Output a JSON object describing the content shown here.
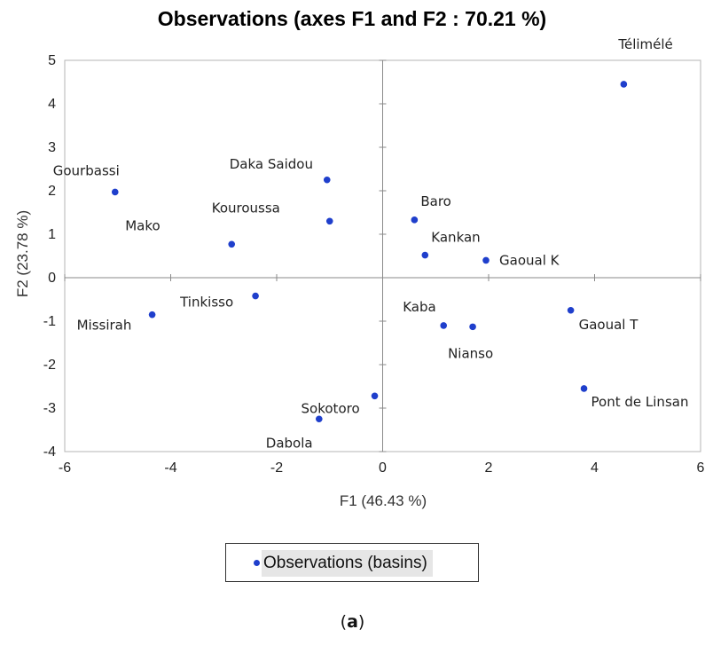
{
  "chart_data": {
    "type": "scatter",
    "title": "Observations (axes F1 and F2 : 70.21 %)",
    "xlabel": "F1 (46.43 %)",
    "ylabel": "F2 (23.78 %)",
    "xlim": [
      -6,
      6
    ],
    "ylim": [
      -4,
      5
    ],
    "x_ticks": [
      -6,
      -4,
      -2,
      0,
      2,
      4,
      6
    ],
    "y_ticks": [
      -4,
      -3,
      -2,
      -1,
      0,
      1,
      2,
      3,
      4,
      5
    ],
    "grid": false,
    "legend_position": "bottom-center",
    "marker_color": "#1f3fcc",
    "series": [
      {
        "name": "Observations (basins)",
        "points": [
          {
            "label": "Télimélé",
            "x": 4.55,
            "y": 4.45
          },
          {
            "label": "Gourbassi",
            "x": -5.05,
            "y": 1.97
          },
          {
            "label": "Daka Saidou",
            "x": -1.05,
            "y": 2.25
          },
          {
            "label": "Kouroussa",
            "x": -1.0,
            "y": 1.3
          },
          {
            "label": "Mako",
            "x": -2.85,
            "y": 0.77
          },
          {
            "label": "Baro",
            "x": 0.6,
            "y": 1.33
          },
          {
            "label": "Kankan",
            "x": 0.8,
            "y": 0.52
          },
          {
            "label": "Gaoual K",
            "x": 1.95,
            "y": 0.4
          },
          {
            "label": "Tinkisso",
            "x": -2.4,
            "y": -0.42
          },
          {
            "label": "Missirah",
            "x": -4.35,
            "y": -0.85
          },
          {
            "label": "Kaba",
            "x": 1.15,
            "y": -1.1
          },
          {
            "label": "Nianso",
            "x": 1.7,
            "y": -1.13
          },
          {
            "label": "Gaoual T",
            "x": 3.55,
            "y": -0.75
          },
          {
            "label": "Pont de Linsan",
            "x": 3.8,
            "y": -2.55
          },
          {
            "label": "Sokotoro",
            "x": -0.15,
            "y": -2.72
          },
          {
            "label": "Dabola",
            "x": -1.2,
            "y": -3.25
          }
        ]
      }
    ]
  },
  "legend": {
    "label": "Observations (basins)"
  },
  "caption": {
    "prefix": "(",
    "letter": "a",
    "suffix": ")"
  }
}
